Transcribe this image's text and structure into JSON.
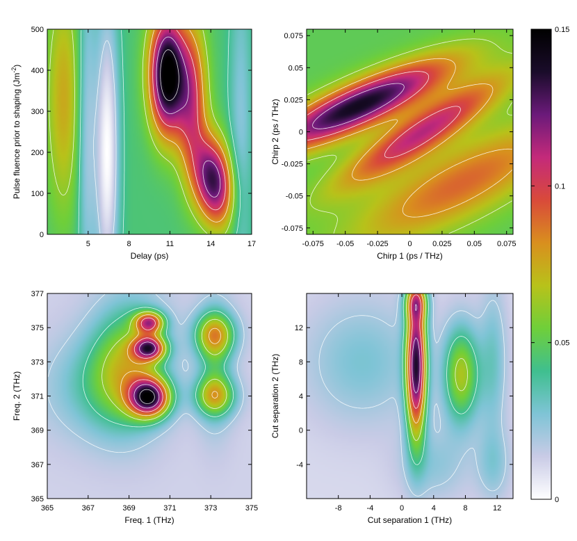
{
  "colorbar": {
    "min": 0,
    "max": 0.15,
    "ticks": [
      {
        "label": "0.15",
        "value": 0.15
      },
      {
        "label": "0.1",
        "value": 0.1
      },
      {
        "label": "0.05",
        "value": 0.05
      },
      {
        "label": "0",
        "value": 0
      }
    ],
    "stops": [
      "#ffffff",
      "#c9cbe6",
      "#7fc4d6",
      "#3fbf8f",
      "#6fcf3a",
      "#b8c21a",
      "#d98f1e",
      "#d94a3a",
      "#c42a7a",
      "#6b1a7a",
      "#1a0c2a",
      "#000000"
    ]
  },
  "chart_data": [
    {
      "type": "heatmap",
      "title": "",
      "xlabel": "Delay (ps)",
      "ylabel_parts": [
        "Pulse fluence prior to shaping (Jm",
        "-2",
        ")"
      ],
      "x_range": [
        2,
        17
      ],
      "y_range": [
        0,
        500
      ],
      "xticks": [
        {
          "label": "5",
          "value": 5
        },
        {
          "label": "8",
          "value": 8
        },
        {
          "label": "11",
          "value": 11
        },
        {
          "label": "14",
          "value": 14
        },
        {
          "label": "17",
          "value": 17
        }
      ],
      "yticks": [
        {
          "label": "0",
          "value": 0
        },
        {
          "label": "100",
          "value": 100
        },
        {
          "label": "200",
          "value": 200
        },
        {
          "label": "300",
          "value": 300
        },
        {
          "label": "400",
          "value": 400
        },
        {
          "label": "500",
          "value": 500
        }
      ],
      "background": 0.045,
      "blobs": [
        {
          "x": 10.8,
          "y": 390,
          "sx": 0.9,
          "sy": 100,
          "amp": 0.11,
          "rho": 0.0
        },
        {
          "x": 14.2,
          "y": 130,
          "sx": 1.0,
          "sy": 75,
          "amp": 0.085,
          "rho": -0.2
        },
        {
          "x": 12.6,
          "y": 330,
          "sx": 0.8,
          "sy": 130,
          "amp": 0.055,
          "rho": 0.0
        },
        {
          "x": 3.2,
          "y": 330,
          "sx": 0.9,
          "sy": 200,
          "amp": 0.03,
          "rho": 0.0
        },
        {
          "x": 6.4,
          "y": 200,
          "sx": 0.6,
          "sy": 250,
          "amp": -0.045,
          "rho": 0.0
        },
        {
          "x": 4.9,
          "y": 250,
          "sx": 0.5,
          "sy": 300,
          "amp": -0.025,
          "rho": 0.0
        },
        {
          "x": 16.2,
          "y": 250,
          "sx": 0.6,
          "sy": 300,
          "amp": -0.02,
          "rho": 0.0
        }
      ]
    },
    {
      "type": "heatmap",
      "title": "",
      "xlabel": "Chirp 1 (ps / THz)",
      "ylabel": "Chirp 2 (ps / THz)",
      "x_range": [
        -0.08,
        0.08
      ],
      "y_range": [
        -0.08,
        0.08
      ],
      "xticks": [
        {
          "label": "-0.075",
          "value": -0.075
        },
        {
          "label": "-0.05",
          "value": -0.05
        },
        {
          "label": "-0.025",
          "value": -0.025
        },
        {
          "label": "0",
          "value": 0
        },
        {
          "label": "0.025",
          "value": 0.025
        },
        {
          "label": "0.05",
          "value": 0.05
        },
        {
          "label": "0.075",
          "value": 0.075
        }
      ],
      "yticks": [
        {
          "label": "-0.075",
          "value": -0.075
        },
        {
          "label": "-0.05",
          "value": -0.05
        },
        {
          "label": "-0.025",
          "value": -0.025
        },
        {
          "label": "0",
          "value": 0
        },
        {
          "label": "0.025",
          "value": 0.025
        },
        {
          "label": "0.05",
          "value": 0.05
        },
        {
          "label": "0.075",
          "value": 0.075
        }
      ],
      "background": 0.05,
      "blobs": [
        {
          "x": -0.04,
          "y": 0.02,
          "sx": 0.05,
          "sy": 0.025,
          "amp": 0.09,
          "rho": 0.85
        },
        {
          "x": 0.01,
          "y": 0.0,
          "sx": 0.045,
          "sy": 0.03,
          "amp": 0.06,
          "rho": 0.9
        },
        {
          "x": 0.04,
          "y": -0.04,
          "sx": 0.06,
          "sy": 0.035,
          "amp": 0.04,
          "rho": 0.8
        }
      ]
    },
    {
      "type": "heatmap",
      "title": "",
      "xlabel": "Freq. 1 (THz)",
      "ylabel": "Freq. 2 (THz)",
      "x_range": [
        365,
        375
      ],
      "y_range": [
        365,
        377
      ],
      "xticks": [
        {
          "label": "365",
          "value": 365
        },
        {
          "label": "367",
          "value": 367
        },
        {
          "label": "369",
          "value": 369
        },
        {
          "label": "371",
          "value": 371
        },
        {
          "label": "373",
          "value": 373
        },
        {
          "label": "375",
          "value": 375
        }
      ],
      "yticks": [
        {
          "label": "365",
          "value": 365
        },
        {
          "label": "367",
          "value": 367
        },
        {
          "label": "369",
          "value": 369
        },
        {
          "label": "371",
          "value": 371
        },
        {
          "label": "373",
          "value": 373
        },
        {
          "label": "375",
          "value": 375
        },
        {
          "label": "377",
          "value": 377
        }
      ],
      "background": 0.012,
      "blobs": [
        {
          "x": 370.0,
          "y": 370.9,
          "sx": 0.7,
          "sy": 0.8,
          "amp": 0.11,
          "rho": 0.0
        },
        {
          "x": 370.0,
          "y": 373.8,
          "sx": 0.55,
          "sy": 0.5,
          "amp": 0.09,
          "rho": 0.0
        },
        {
          "x": 370.0,
          "y": 375.3,
          "sx": 0.5,
          "sy": 0.45,
          "amp": 0.08,
          "rho": 0.0
        },
        {
          "x": 369.2,
          "y": 373.0,
          "sx": 1.2,
          "sy": 2.5,
          "amp": 0.04,
          "rho": 0.0
        },
        {
          "x": 373.2,
          "y": 374.6,
          "sx": 0.7,
          "sy": 0.9,
          "amp": 0.055,
          "rho": 0.0
        },
        {
          "x": 373.2,
          "y": 371.0,
          "sx": 0.7,
          "sy": 0.8,
          "amp": 0.05,
          "rho": 0.0
        },
        {
          "x": 373.2,
          "y": 372.8,
          "sx": 0.6,
          "sy": 2.5,
          "amp": 0.025,
          "rho": 0.0
        },
        {
          "x": 368.2,
          "y": 372.0,
          "sx": 1.2,
          "sy": 2.2,
          "amp": 0.025,
          "rho": 0.0
        },
        {
          "x": 366.5,
          "y": 371.5,
          "sx": 1.5,
          "sy": 2.0,
          "amp": 0.012,
          "rho": 0.0
        }
      ]
    },
    {
      "type": "heatmap",
      "title": "",
      "xlabel": "Cut separation 1 (THz)",
      "ylabel": "Cut separation 2 (THz)",
      "x_range": [
        -12,
        14
      ],
      "y_range": [
        -8,
        16
      ],
      "xticks": [
        {
          "label": "-8",
          "value": -8
        },
        {
          "label": "-4",
          "value": -4
        },
        {
          "label": "0",
          "value": 0
        },
        {
          "label": "4",
          "value": 4
        },
        {
          "label": "8",
          "value": 8
        },
        {
          "label": "12",
          "value": 12
        }
      ],
      "yticks": [
        {
          "label": "-4",
          "value": -4
        },
        {
          "label": "0",
          "value": 0
        },
        {
          "label": "4",
          "value": 4
        },
        {
          "label": "8",
          "value": 8
        },
        {
          "label": "12",
          "value": 12
        }
      ],
      "background": 0.01,
      "blobs": [
        {
          "x": 1.8,
          "y": 7.5,
          "sx": 0.9,
          "sy": 6.0,
          "amp": 0.12,
          "rho": 0.0
        },
        {
          "x": 1.8,
          "y": 15.0,
          "sx": 1.0,
          "sy": 1.5,
          "amp": 0.05,
          "rho": 0.0
        },
        {
          "x": 7.5,
          "y": 6.5,
          "sx": 1.6,
          "sy": 4.0,
          "amp": 0.055,
          "rho": 0.0
        },
        {
          "x": -5.0,
          "y": 8.0,
          "sx": 5.0,
          "sy": 5.0,
          "amp": 0.018,
          "rho": 0.0
        },
        {
          "x": 11.5,
          "y": 8.0,
          "sx": 1.2,
          "sy": 6.0,
          "amp": 0.02,
          "rho": 0.0
        },
        {
          "x": 4.0,
          "y": -4.0,
          "sx": 3.0,
          "sy": 3.0,
          "amp": 0.014,
          "rho": 0.0
        },
        {
          "x": 11.5,
          "y": -4.0,
          "sx": 1.5,
          "sy": 3.0,
          "amp": 0.015,
          "rho": 0.0
        }
      ]
    }
  ]
}
